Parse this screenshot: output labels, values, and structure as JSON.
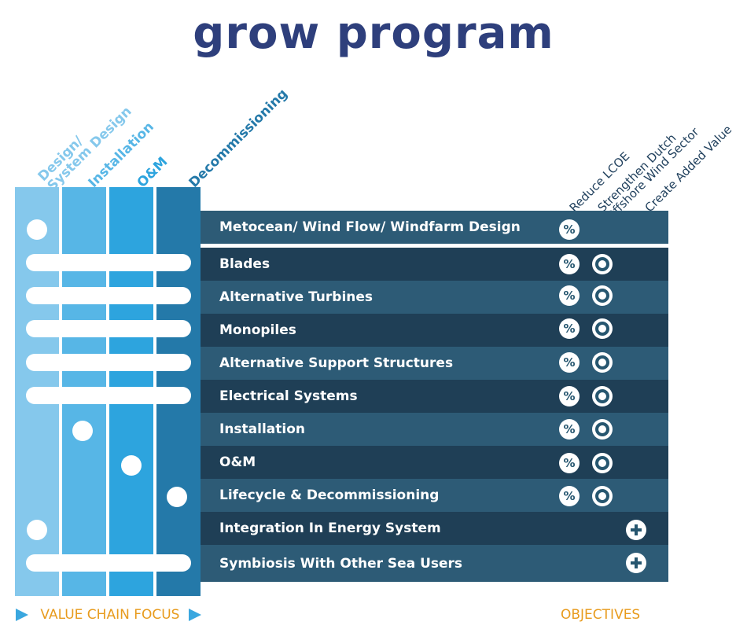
{
  "title": "grow program",
  "stages": [
    {
      "line1": "Design/",
      "line2": "System Design",
      "color": "#85c8ec"
    },
    {
      "line1": "Installation",
      "line2": "",
      "color": "#57b6e6"
    },
    {
      "line1": "O&M",
      "line2": "",
      "color": "#2da4de"
    },
    {
      "line1": "Decommissioning",
      "line2": "",
      "color": "#2479a9"
    }
  ],
  "objectives": {
    "reduce": "Reduce LCOE",
    "strengthen_1": "Strengthen Dutch",
    "strengthen_2": "Offshore Wind Sector",
    "added": "Create Added Value"
  },
  "icon_text": {
    "percent": "%"
  },
  "rows": [
    {
      "label": "Metocean/ Wind Flow/ Windfarm Design"
    },
    {
      "label": "Blades"
    },
    {
      "label": "Alternative Turbines"
    },
    {
      "label": "Monopiles"
    },
    {
      "label": "Alternative Support Structures"
    },
    {
      "label": "Electrical Systems"
    },
    {
      "label": "Installation"
    },
    {
      "label": "O&M"
    },
    {
      "label": "Lifecycle & Decommissioning"
    },
    {
      "label": "Integration In Energy System"
    },
    {
      "label": "Symbiosis With Other Sea Users"
    }
  ],
  "row_colors": {
    "light": "#2d5b76",
    "dark": "#1f3f56"
  },
  "footer": {
    "value_chain": "VALUE CHAIN FOCUS",
    "objectives": "OBJECTIVES"
  }
}
